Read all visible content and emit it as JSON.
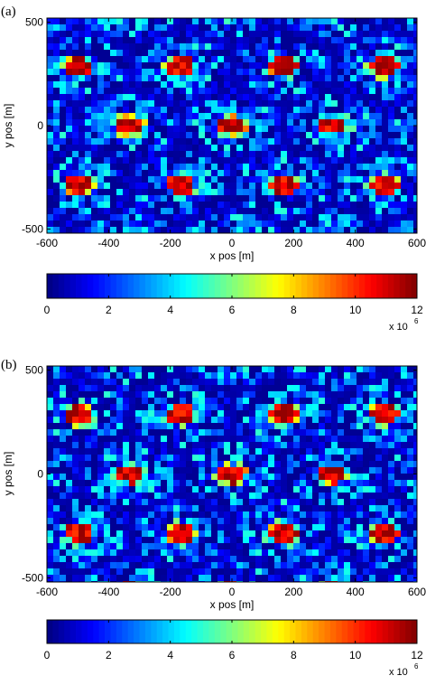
{
  "chart_data": [
    {
      "type": "heatmap",
      "panel_label": "(a)",
      "xlabel": "x pos [m]",
      "ylabel": "y pos [m]",
      "xlim": [
        -600,
        600
      ],
      "ylim": [
        -520,
        520
      ],
      "x_ticks": [
        -600,
        -400,
        -200,
        0,
        200,
        400,
        600
      ],
      "y_ticks": [
        -500,
        0,
        500
      ],
      "colormap": "jet",
      "colorbar": {
        "min": 0,
        "max": 12,
        "ticks": [
          0,
          2,
          4,
          6,
          8,
          10,
          12
        ],
        "exponent_label": "x 10",
        "exponent": "6"
      },
      "pattern": "hexagonal cell layout; high values (~10-12 x 10^6) near cell centers, low values (~0-2 x 10^6) along cell boundaries",
      "seed": 11
    },
    {
      "type": "heatmap",
      "panel_label": "(b)",
      "xlabel": "x pos [m]",
      "ylabel": "y pos [m]",
      "xlim": [
        -600,
        600
      ],
      "ylim": [
        -520,
        520
      ],
      "x_ticks": [
        -600,
        -400,
        -200,
        0,
        200,
        400,
        600
      ],
      "y_ticks": [
        -500,
        0,
        500
      ],
      "colormap": "jet",
      "colorbar": {
        "min": 0,
        "max": 12,
        "ticks": [
          0,
          2,
          4,
          6,
          8,
          10,
          12
        ],
        "exponent_label": "x 10",
        "exponent": "6"
      },
      "pattern": "hexagonal cell layout; high values (~10-12 x 10^6) near cell centers, low values (~0-2 x 10^6) along cell boundaries",
      "seed": 29
    }
  ]
}
